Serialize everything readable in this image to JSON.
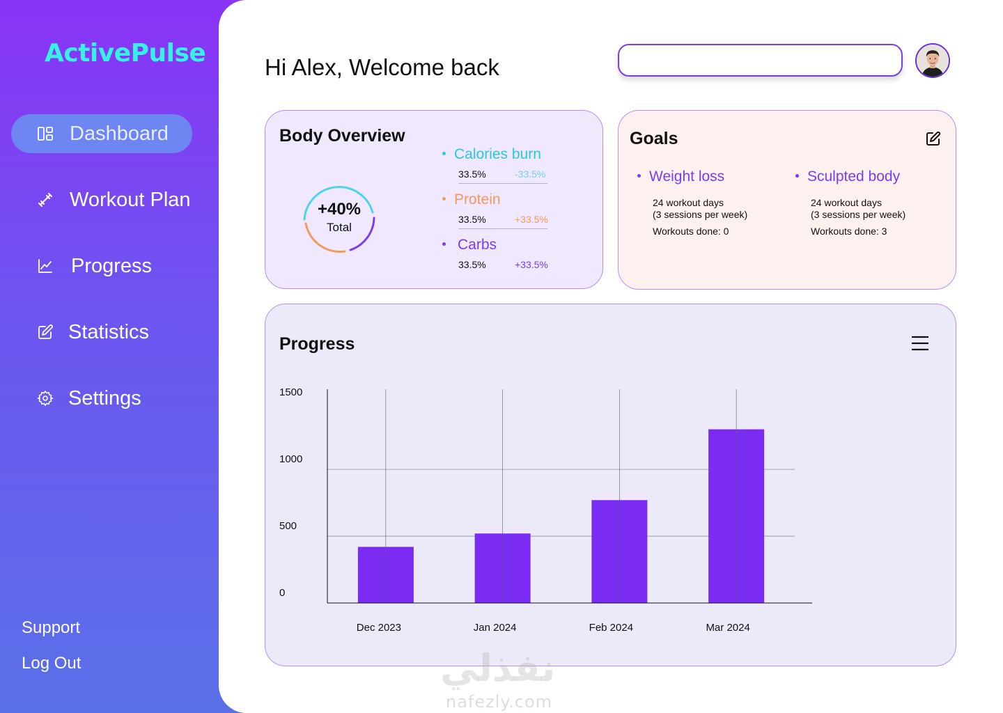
{
  "app": {
    "logo": "ActivePulse"
  },
  "sidebar": {
    "items": [
      {
        "label": "Dashboard",
        "icon": "dashboard-icon",
        "active": true
      },
      {
        "label": "Workout Plan",
        "icon": "dumbbell-icon"
      },
      {
        "label": "Progress",
        "icon": "line-chart-icon"
      },
      {
        "label": "Statistics",
        "icon": "edit-icon"
      },
      {
        "label": "Settings",
        "icon": "gear-icon"
      }
    ],
    "support": "Support",
    "logout": "Log Out"
  },
  "header": {
    "greeting": "Hi Alex, Welcome back",
    "search_value": "",
    "avatar_icon": "user-avatar"
  },
  "body_overview": {
    "title": "Body Overview",
    "total_value": "+40%",
    "total_label": "Total",
    "metrics": [
      {
        "name": "Calories burn",
        "value": "33.5%",
        "change": "-33.5%",
        "color": "#29c6e6",
        "change_color": "#6cd3ea"
      },
      {
        "name": "Protein",
        "value": "33.5%",
        "change": "+33.5%",
        "color": "#f59a5a",
        "change_color": "#f59a5a"
      },
      {
        "name": "Carbs",
        "value": "33.5%",
        "change": "+33.5%",
        "color": "#7a3cf0",
        "change_color": "#7a3cf0"
      }
    ]
  },
  "goals": {
    "title": "Goals",
    "items": [
      {
        "name": "Weight loss",
        "line1": "24 workout days",
        "line2": "(3 sessions per week)",
        "line3": "Workouts done: 0"
      },
      {
        "name": "Sculpted body",
        "line1": "24 workout days",
        "line2": "(3 sessions per week)",
        "line3": "Workouts done: 3"
      }
    ]
  },
  "progress": {
    "title": "Progress"
  },
  "chart_data": {
    "type": "bar",
    "categories": [
      "Dec 2023",
      "Jan 2024",
      "Feb 2024",
      "Mar 2024"
    ],
    "values": [
      420,
      520,
      770,
      1300
    ],
    "ylim": [
      0,
      1600
    ],
    "yticks": [
      0,
      500,
      1000,
      1500
    ],
    "title": "",
    "xlabel": "",
    "ylabel": "",
    "bar_color": "#7b2cf2",
    "grid": true
  },
  "watermark": {
    "arabic": "نفذلي",
    "site": "nafezly.com"
  }
}
